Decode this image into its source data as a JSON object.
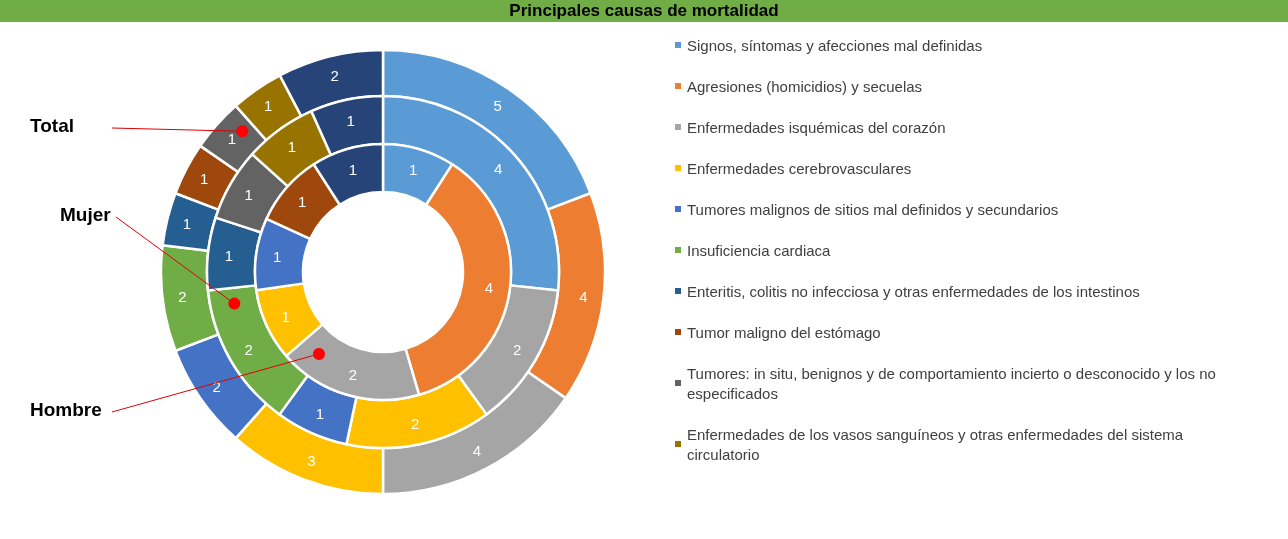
{
  "chart_data": {
    "type": "donut",
    "title": "Principales causas de mortalidad",
    "categories": [
      "Signos, síntomas y afecciones mal definidas",
      "Agresiones (homicidios) y secuelas",
      "Enfermedades isquémicas del corazón",
      "Enfermedades cerebrovasculares",
      "Tumores malignos de sitios mal definidos y secundarios",
      "Insuficiencia cardiaca",
      "Enteritis, colitis no infecciosa y otras enfermedades de los intestinos",
      "Tumor maligno del estómago",
      "Tumores: in situ, benignos y de comportamiento incierto o desconocido y los no especificados",
      "Enfermedades de los vasos sanguíneos y otras enfermedades del sistema circulatorio",
      null
    ],
    "colors": [
      "#5b9bd5",
      "#ed7d31",
      "#a5a5a5",
      "#ffc000",
      "#4472c4",
      "#70ad47",
      "#255e91",
      "#9e480e",
      "#636363",
      "#997300",
      "#264478"
    ],
    "series": [
      {
        "name": "Total",
        "values": [
          5,
          4,
          4,
          3,
          2,
          2,
          1,
          1,
          1,
          1,
          2
        ]
      },
      {
        "name": "Mujer",
        "values": [
          4,
          0,
          2,
          2,
          1,
          2,
          1,
          0,
          1,
          1,
          1
        ]
      },
      {
        "name": "Hombre",
        "values": [
          1,
          4,
          2,
          1,
          1,
          0,
          0,
          1,
          0,
          0,
          1
        ]
      }
    ],
    "data_labels": true,
    "legend": "right"
  }
}
